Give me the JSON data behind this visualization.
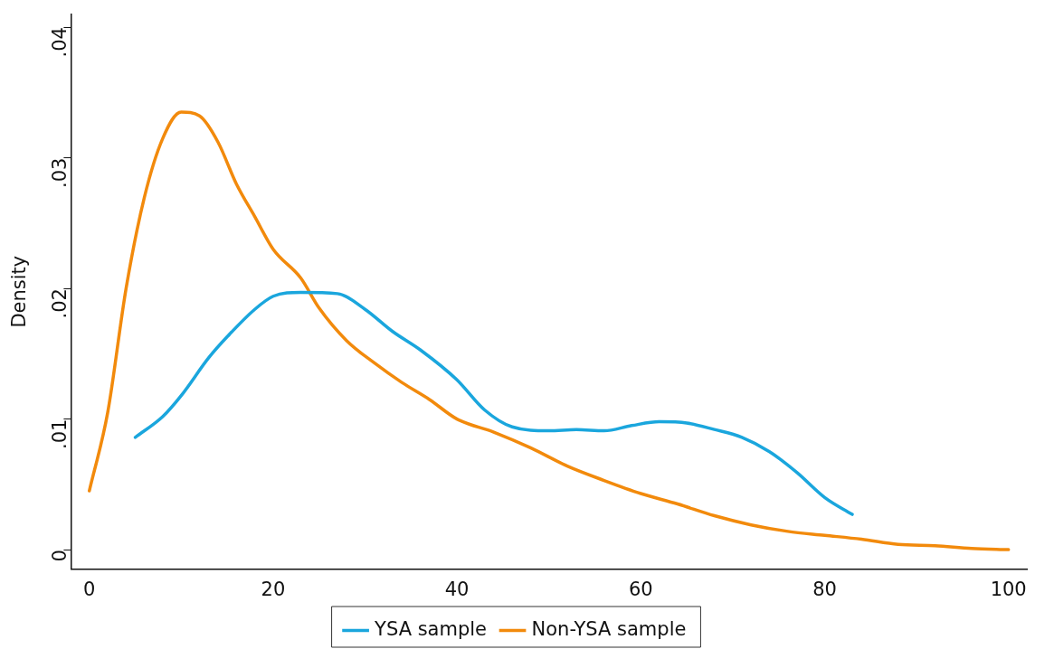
{
  "chart_data": {
    "type": "line",
    "ylabel": "Density",
    "xlim": [
      -2,
      102
    ],
    "xticks": [
      0,
      20,
      40,
      60,
      80,
      100
    ],
    "ylim": [
      -0.0015,
      0.041
    ],
    "yticks": [
      {
        "value": 0,
        "label": "0"
      },
      {
        "value": 0.01,
        "label": ".01"
      },
      {
        "value": 0.02,
        "label": ".02"
      },
      {
        "value": 0.03,
        "label": ".03"
      },
      {
        "value": 0.04,
        "label": ".04"
      }
    ],
    "grid": false,
    "legend": "bottom",
    "marker": "none",
    "line_style": "solid",
    "series": [
      {
        "name": "YSA sample",
        "color": "#1aa6dd",
        "x": [
          5,
          8,
          10,
          13,
          15,
          18,
          20,
          23,
          27,
          30,
          33,
          36,
          40,
          43,
          46,
          50,
          53,
          56,
          59,
          62,
          65,
          68,
          71,
          74,
          77,
          80,
          83
        ],
        "values": [
          0.0086,
          0.0102,
          0.0118,
          0.0147,
          0.0163,
          0.0184,
          0.0194,
          0.0197,
          0.0196,
          0.0184,
          0.0167,
          0.0153,
          0.013,
          0.0107,
          0.0094,
          0.0091,
          0.0092,
          0.0091,
          0.0095,
          0.0098,
          0.0097,
          0.0092,
          0.0086,
          0.0075,
          0.0059,
          0.004,
          0.0027
        ]
      },
      {
        "name": "Non-YSA sample",
        "color": "#f28a0c",
        "x": [
          0,
          2,
          4,
          6,
          8,
          10,
          12,
          14,
          16,
          18,
          20,
          23,
          25,
          28,
          31,
          34,
          37,
          40,
          44,
          48,
          52,
          56,
          60,
          64,
          68,
          72,
          76,
          80,
          84,
          88,
          92,
          96,
          100
        ],
        "values": [
          0.0045,
          0.0105,
          0.02,
          0.027,
          0.0315,
          0.0335,
          0.0332,
          0.0312,
          0.028,
          0.0255,
          0.023,
          0.0208,
          0.0185,
          0.016,
          0.0143,
          0.0128,
          0.0115,
          0.01,
          0.009,
          0.0078,
          0.0064,
          0.0053,
          0.0043,
          0.0035,
          0.0026,
          0.0019,
          0.0014,
          0.0011,
          0.0008,
          0.0004,
          0.0003,
          0.0001,
          0
        ]
      }
    ]
  }
}
